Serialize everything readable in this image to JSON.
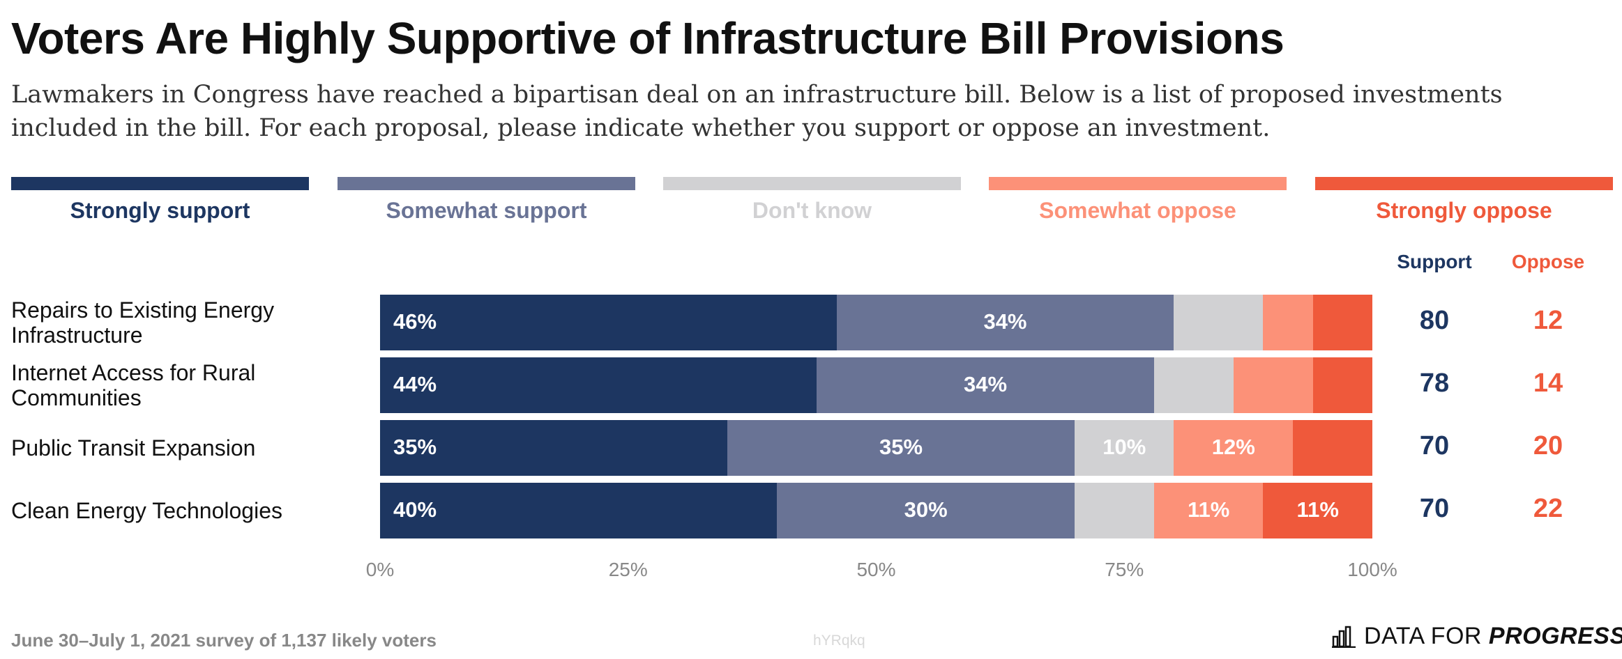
{
  "title": "Voters Are Highly Supportive of Infrastructure Bill Provisions",
  "subtitle": "Lawmakers in Congress have reached a bipartisan deal on an infrastructure bill. Below is a list of proposed investments included in the bill. For each proposal, please indicate whether you support or oppose an investment.",
  "legend": [
    {
      "label": "Strongly support",
      "color": "#1d3661"
    },
    {
      "label": "Somewhat support",
      "color": "#697395"
    },
    {
      "label": "Don't know",
      "color": "#d1d1d3"
    },
    {
      "label": "Somewhat oppose",
      "color": "#fc9178"
    },
    {
      "label": "Strongly oppose",
      "color": "#ef593b"
    }
  ],
  "columns": {
    "support": "Support",
    "oppose": "Oppose"
  },
  "chart_data": {
    "type": "bar",
    "orientation": "horizontal",
    "stacked": true,
    "categories": [
      "Repairs to Existing Energy Infrastructure",
      "Internet Access for Rural Communities",
      "Public Transit Expansion",
      "Clean Energy Technologies"
    ],
    "series": [
      {
        "name": "Strongly support",
        "values": [
          46,
          44,
          35,
          40
        ],
        "labels": [
          "46%",
          "44%",
          "35%",
          "40%"
        ]
      },
      {
        "name": "Somewhat support",
        "values": [
          34,
          34,
          35,
          30
        ],
        "labels": [
          "34%",
          "34%",
          "35%",
          "30%"
        ]
      },
      {
        "name": "Don't know",
        "values": [
          9,
          8,
          10,
          8
        ],
        "labels": [
          "",
          "",
          "10%",
          ""
        ]
      },
      {
        "name": "Somewhat oppose",
        "values": [
          5,
          8,
          12,
          11
        ],
        "labels": [
          "",
          "",
          "12%",
          "11%"
        ]
      },
      {
        "name": "Strongly oppose",
        "values": [
          6,
          6,
          8,
          11
        ],
        "labels": [
          "",
          "",
          "",
          "11%"
        ]
      }
    ],
    "totals": {
      "support": [
        "80",
        "78",
        "70",
        "70"
      ],
      "oppose": [
        "12",
        "14",
        "20",
        "22"
      ]
    },
    "xlim": [
      0,
      100
    ],
    "xticks": [
      "0%",
      "25%",
      "50%",
      "75%",
      "100%"
    ]
  },
  "footnote": "June 30–July 1, 2021 survey of 1,137 likely voters",
  "watermark": "hYRqkq",
  "brand": {
    "prefix": "DATA FOR ",
    "emphasis": "PROGRESS"
  }
}
